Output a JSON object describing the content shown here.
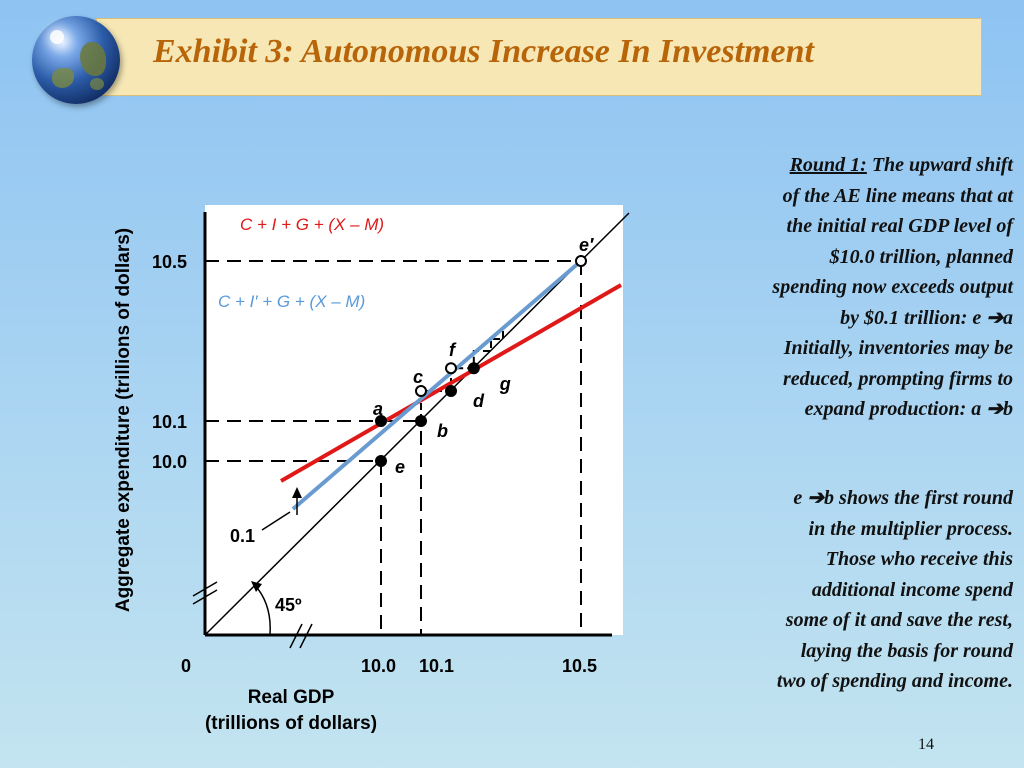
{
  "slide": {
    "title": "Exhibit 3: Autonomous Increase In Investment",
    "page_number": "14",
    "para1": {
      "lines": [
        {
          "prefix": "Round 1:",
          "text": " The upward shift"
        },
        {
          "text": "of the AE line means that at"
        },
        {
          "text": "the initial real GDP level of"
        },
        {
          "text": "$10.0 trillion, planned"
        },
        {
          "text": "spending now exceeds output"
        },
        {
          "text": "by $0.1 trillion: e ➔a"
        },
        {
          "text": "Initially, inventories may be"
        },
        {
          "text": "reduced, prompting firms to"
        },
        {
          "text": "expand production: a ➔b"
        }
      ]
    },
    "para2": {
      "lines": [
        {
          "text": "e ➔b shows the first round"
        },
        {
          "text": "in the multiplier process."
        },
        {
          "text": "Those who receive this"
        },
        {
          "text": "additional income spend"
        },
        {
          "text": "some of it and save the rest,"
        },
        {
          "text": "laying the basis for round"
        },
        {
          "text": "two of spending and income."
        }
      ]
    }
  },
  "chart_data": {
    "type": "line",
    "xlabel": "Real GDP\n(trillions of dollars)",
    "ylabel": "Aggregate expenditure (trillions of dollars)",
    "origin_label": "0",
    "x_ticks": [
      "10.0",
      "10.1",
      "10.5"
    ],
    "y_ticks": [
      "10.0",
      "10.1",
      "10.5"
    ],
    "axes_break": true,
    "series": [
      {
        "name": "C + I + G + (X – M)",
        "color": "#e01818",
        "x": [
          9.75,
          10.6
        ],
        "y": [
          9.95,
          10.44
        ]
      },
      {
        "name": "C + I′ + G + (X – M)",
        "color": "#6a9bd0",
        "x": [
          9.78,
          10.5
        ],
        "y": [
          9.88,
          10.5
        ]
      }
    ],
    "reference_line": {
      "label": "45º",
      "color": "#000000"
    },
    "shift_annotation": "0.1",
    "points": [
      {
        "label": "e",
        "x": 10.0,
        "y": 10.0
      },
      {
        "label": "a",
        "x": 10.0,
        "y": 10.1
      },
      {
        "label": "b",
        "x": 10.1,
        "y": 10.1
      },
      {
        "label": "c",
        "x": 10.1,
        "y": 10.175
      },
      {
        "label": "d",
        "x": 10.175,
        "y": 10.175
      },
      {
        "label": "f",
        "x": 10.175,
        "y": 10.232
      },
      {
        "label": "g",
        "x": 10.232,
        "y": 10.232
      },
      {
        "label": "e′",
        "x": 10.5,
        "y": 10.5
      }
    ]
  }
}
